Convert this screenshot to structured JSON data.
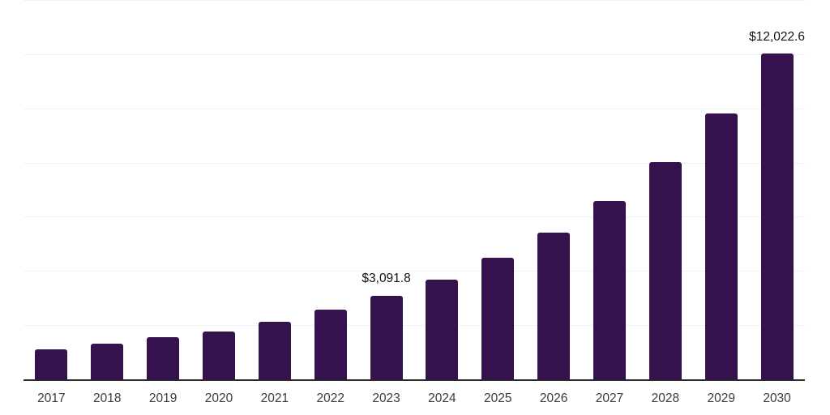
{
  "chart_data": {
    "type": "bar",
    "title": "",
    "xlabel": "",
    "ylabel": "",
    "categories": [
      "2017",
      "2018",
      "2019",
      "2020",
      "2021",
      "2022",
      "2023",
      "2024",
      "2025",
      "2026",
      "2027",
      "2028",
      "2029",
      "2030"
    ],
    "values": [
      1105,
      1305,
      1565,
      1765,
      2135,
      2565,
      3091.8,
      3685,
      4485,
      5405,
      6585,
      8030,
      9825,
      12022.6
    ],
    "data_labels": [
      null,
      null,
      null,
      null,
      null,
      null,
      "$3,091.8",
      null,
      null,
      null,
      null,
      null,
      null,
      "$12,022.6"
    ],
    "ylim": [
      0,
      14000
    ],
    "gridline_step": 2000,
    "grid": "horizontal",
    "legend": "none",
    "y_tick_labels_visible": false,
    "bar_color": "#35114E",
    "axis_line_color": "#2a2a2a",
    "gridline_color": "#f1f1f4",
    "data_label_color": "#111111",
    "tick_label_color": "#3c3c3c"
  }
}
